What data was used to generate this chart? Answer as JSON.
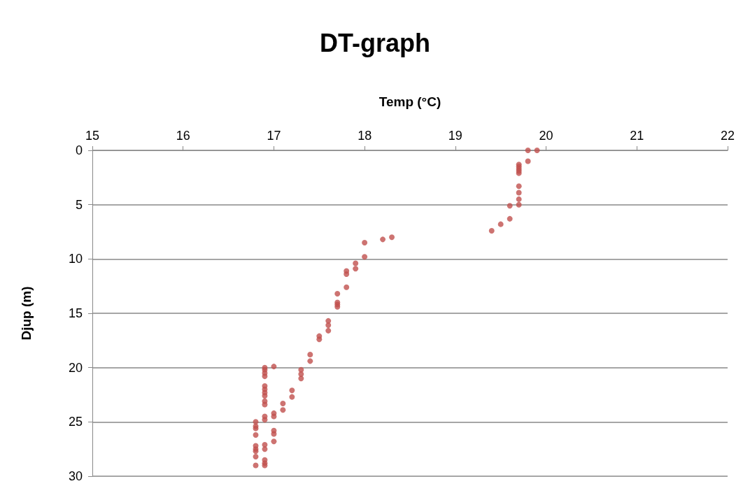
{
  "chart_data": {
    "type": "scatter",
    "title": "DT-graph",
    "xlabel": "Temp (°C)",
    "ylabel": "Djup (m)",
    "x": [
      19.8,
      19.9,
      19.8,
      19.7,
      19.7,
      19.7,
      19.7,
      19.7,
      19.7,
      19.7,
      19.7,
      19.7,
      19.6,
      19.6,
      19.5,
      19.4,
      18.3,
      18.2,
      18.0,
      18.0,
      17.9,
      17.9,
      17.8,
      17.8,
      17.8,
      17.7,
      17.7,
      17.7,
      17.7,
      17.6,
      17.6,
      17.6,
      17.5,
      17.5,
      17.4,
      17.4,
      17.0,
      16.9,
      16.9,
      16.9,
      16.9,
      17.3,
      17.3,
      17.3,
      16.9,
      16.9,
      16.9,
      16.9,
      17.2,
      17.2,
      16.9,
      16.9,
      17.1,
      17.1,
      17.0,
      17.0,
      16.9,
      16.9,
      16.8,
      16.8,
      16.8,
      16.8,
      17.0,
      17.0,
      17.0,
      16.9,
      16.9,
      16.8,
      16.8,
      16.8,
      16.8,
      16.9,
      16.9,
      16.9,
      16.8
    ],
    "values": [
      0.0,
      0.0,
      1.0,
      1.3,
      1.5,
      1.7,
      1.9,
      2.1,
      3.3,
      3.9,
      4.5,
      5.0,
      5.1,
      6.3,
      6.8,
      7.4,
      8.0,
      8.2,
      8.5,
      9.8,
      10.4,
      10.9,
      11.1,
      11.4,
      12.6,
      13.2,
      14.0,
      14.2,
      14.4,
      15.7,
      16.1,
      16.6,
      17.1,
      17.4,
      18.8,
      19.4,
      19.9,
      20.0,
      20.2,
      20.5,
      20.8,
      20.2,
      20.6,
      21.0,
      21.7,
      22.0,
      22.3,
      22.6,
      22.1,
      22.7,
      23.1,
      23.4,
      23.3,
      23.9,
      24.2,
      24.5,
      24.5,
      24.8,
      25.0,
      25.4,
      25.6,
      26.2,
      25.8,
      26.1,
      26.8,
      27.1,
      27.5,
      27.2,
      27.5,
      27.7,
      28.2,
      28.5,
      28.8,
      29.0,
      29.0
    ],
    "color": "#c0504d",
    "marker": "circle",
    "xlim": [
      15,
      22
    ],
    "xticks": [
      15,
      16,
      17,
      18,
      19,
      20,
      21,
      22
    ],
    "ylim": [
      30,
      0
    ],
    "yticks": [
      0,
      5,
      10,
      15,
      20,
      25,
      30
    ],
    "grid": "y"
  }
}
